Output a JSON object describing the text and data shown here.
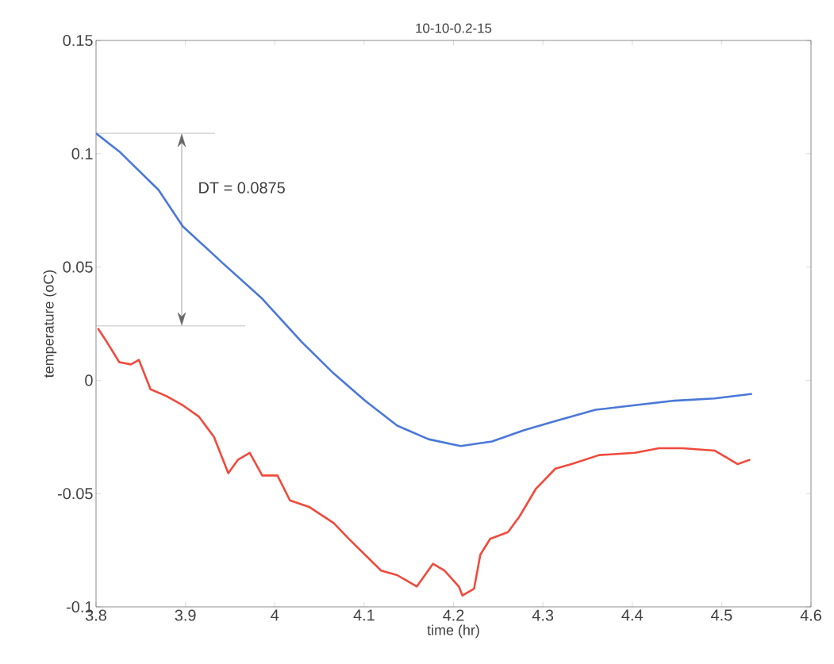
{
  "chart_data": {
    "type": "line",
    "title": "10-10-0.2-15",
    "xlabel": "time (hr)",
    "ylabel": "temperature (oC)",
    "xlim": [
      3.8,
      4.6
    ],
    "xticks": [
      3.8,
      3.9,
      4,
      4.1,
      4.2,
      4.3,
      4.4,
      4.5,
      4.6
    ],
    "ylim": [
      -0.1,
      0.15
    ],
    "yticks": [
      -0.1,
      -0.05,
      0,
      0.05,
      0.1,
      0.15
    ],
    "grid": false,
    "marker": "none",
    "line_style": "solid",
    "annotations": [
      "DT = 0.0875"
    ],
    "ref_lines": [
      {
        "axis": "y",
        "value": 0.109,
        "color": "#808080"
      },
      {
        "axis": "y",
        "value": 0.024,
        "color": "#808080"
      }
    ],
    "series": [
      {
        "color": "#4a78d8",
        "x": [
          3.8,
          3.826,
          3.87,
          3.897,
          3.941,
          3.986,
          4.03,
          4.066,
          4.101,
          4.137,
          4.172,
          4.208,
          4.243,
          4.279,
          4.314,
          4.359,
          4.403,
          4.447,
          4.492,
          4.534
        ],
        "values": [
          0.109,
          0.101,
          0.084,
          0.068,
          0.052,
          0.036,
          0.017,
          0.003,
          -0.009,
          -0.02,
          -0.026,
          -0.029,
          -0.027,
          -0.022,
          -0.018,
          -0.013,
          -0.011,
          -0.009,
          -0.008,
          -0.006
        ]
      },
      {
        "color": "#f04a3c",
        "x": [
          3.802,
          3.812,
          3.826,
          3.839,
          3.848,
          3.861,
          3.879,
          3.897,
          3.915,
          3.932,
          3.948,
          3.959,
          3.972,
          3.986,
          4.003,
          4.017,
          4.039,
          4.066,
          4.083,
          4.101,
          4.119,
          4.137,
          4.159,
          4.177,
          4.19,
          4.206,
          4.21,
          4.223,
          4.23,
          4.241,
          4.261,
          4.274,
          4.292,
          4.314,
          4.332,
          4.363,
          4.403,
          4.43,
          4.456,
          4.492,
          4.505,
          4.518,
          4.532
        ],
        "values": [
          0.023,
          0.017,
          0.008,
          0.007,
          0.009,
          -0.004,
          -0.007,
          -0.011,
          -0.016,
          -0.025,
          -0.041,
          -0.035,
          -0.032,
          -0.042,
          -0.042,
          -0.053,
          -0.056,
          -0.063,
          -0.07,
          -0.077,
          -0.084,
          -0.086,
          -0.091,
          -0.081,
          -0.084,
          -0.091,
          -0.095,
          -0.092,
          -0.077,
          -0.07,
          -0.067,
          -0.06,
          -0.048,
          -0.039,
          -0.037,
          -0.033,
          -0.032,
          -0.03,
          -0.03,
          -0.031,
          -0.034,
          -0.037,
          -0.035
        ]
      }
    ]
  }
}
